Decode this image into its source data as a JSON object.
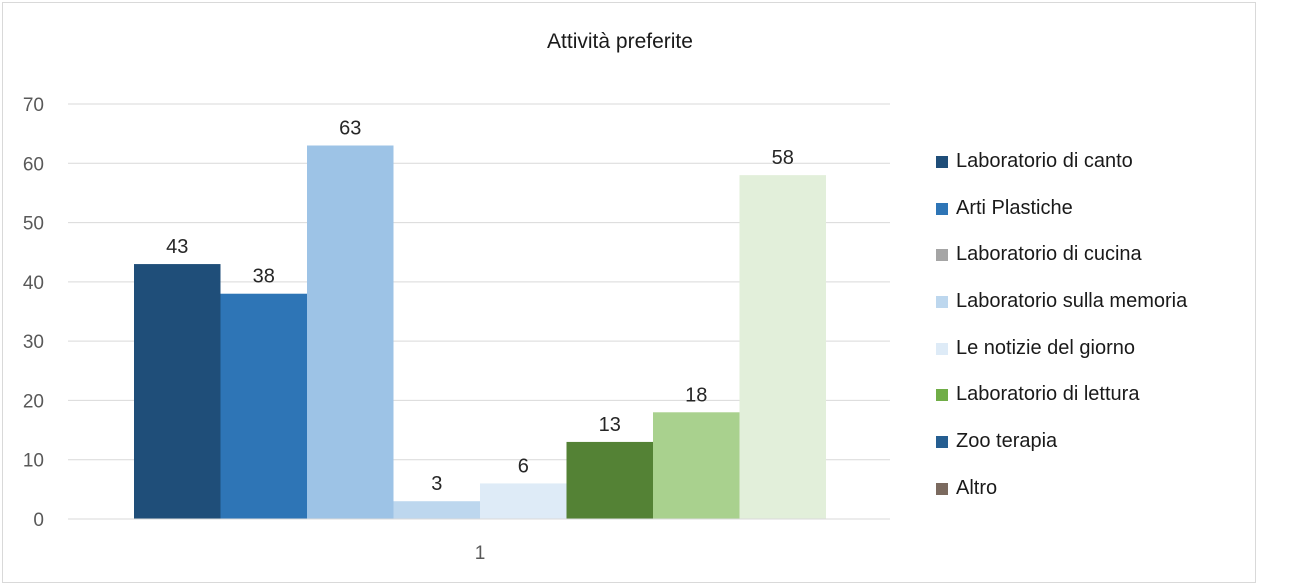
{
  "chart_data": {
    "type": "bar",
    "title": "Attività preferite",
    "categories": [
      "1"
    ],
    "ylim": [
      0,
      70
    ],
    "yticks": [
      0,
      10,
      20,
      30,
      40,
      50,
      60,
      70
    ],
    "grid": true,
    "legend_position": "right",
    "series": [
      {
        "name": "Laboratorio di canto",
        "values": [
          43
        ],
        "color": "#1f4e79"
      },
      {
        "name": "Arti Plastiche",
        "values": [
          38
        ],
        "color": "#2e75b6"
      },
      {
        "name": "Laboratorio di cucina",
        "values": [
          63
        ],
        "color": "#9dc3e6"
      },
      {
        "name": "Laboratorio sulla memoria",
        "values": [
          3
        ],
        "color": "#bdd7ee"
      },
      {
        "name": "Le notizie del giorno",
        "values": [
          6
        ],
        "color": "#deebf7"
      },
      {
        "name": "Laboratorio di lettura",
        "values": [
          13
        ],
        "color": "#548235"
      },
      {
        "name": "Zoo terapia",
        "values": [
          18
        ],
        "color": "#a9d18e"
      },
      {
        "name": "Altro",
        "values": [
          58
        ],
        "color": "#e2efda"
      }
    ],
    "legend": [
      {
        "label": "Laboratorio di canto",
        "color": "#1f4e79"
      },
      {
        "label": "Arti Plastiche",
        "color": "#2e75b6"
      },
      {
        "label": "Laboratorio di cucina",
        "color": "#a5a5a5"
      },
      {
        "label": "Laboratorio sulla memoria",
        "color": "#bdd7ee"
      },
      {
        "label": "Le notizie del giorno",
        "color": "#deebf7"
      },
      {
        "label": "Laboratorio di lettura",
        "color": "#70ad47"
      },
      {
        "label": "Zoo terapia",
        "color": "#255e91"
      },
      {
        "label": "Altro",
        "color": "#7b6a5f"
      }
    ],
    "data_labels": true
  }
}
